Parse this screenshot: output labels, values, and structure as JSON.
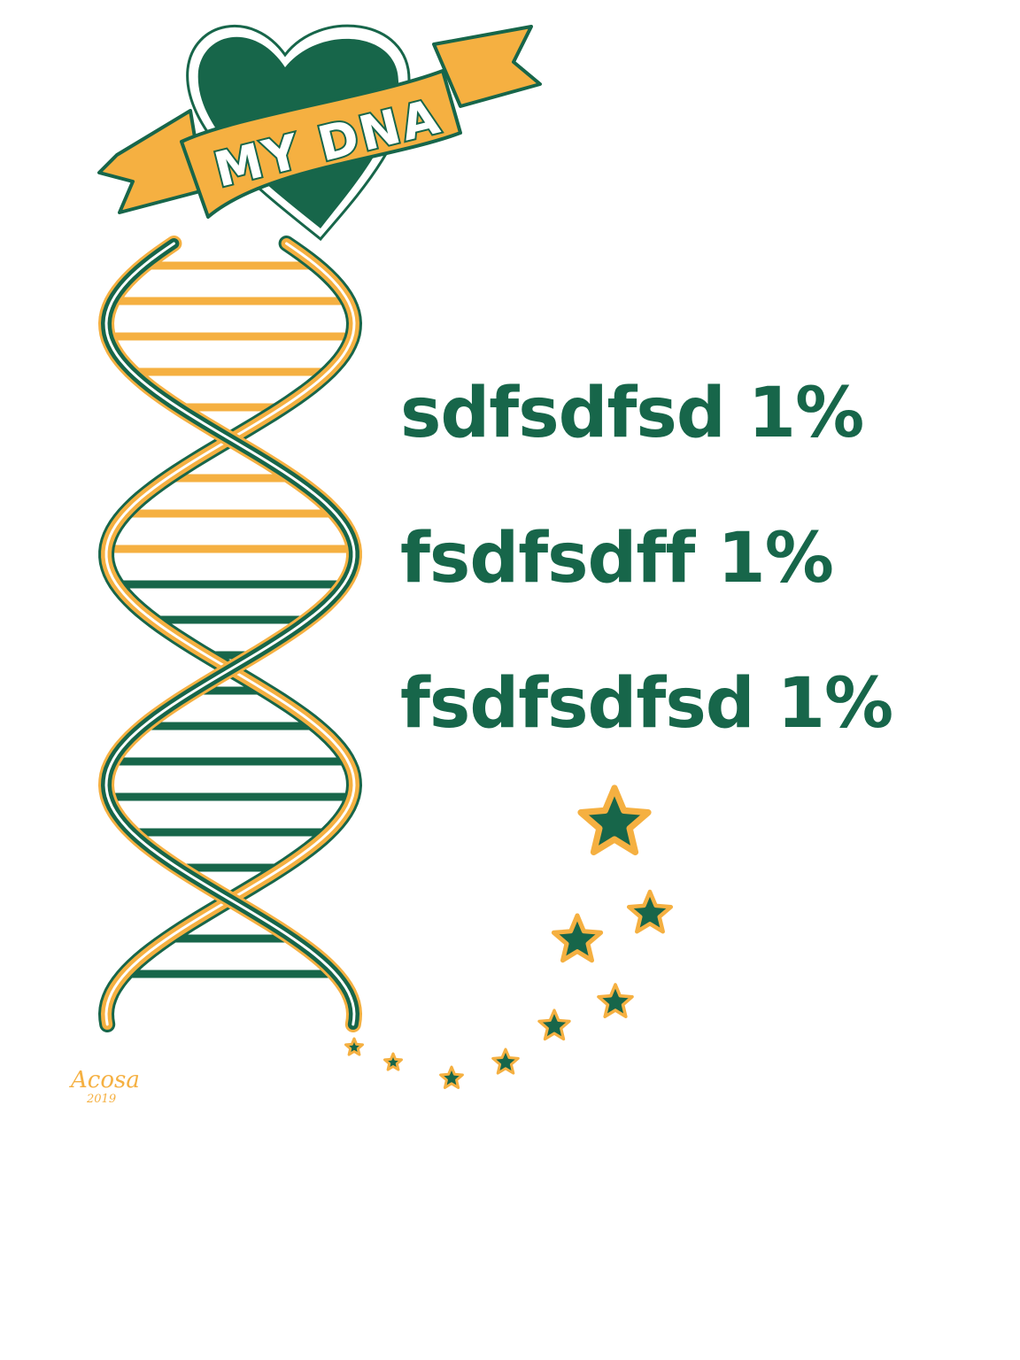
{
  "banner": {
    "text": "MY DNA"
  },
  "ancestry_lines": [
    "sdfsdfsd 1%",
    "fsdfsdff 1%",
    "fsdfsdfsd 1%"
  ],
  "signature": {
    "name": "Acosa",
    "year": "2019"
  },
  "icons": [
    "heart-icon",
    "banner-ribbon",
    "dna-helix",
    "star-icon"
  ],
  "colors": {
    "green": "#17664a",
    "gold": "#f5b041",
    "white": "#ffffff"
  }
}
